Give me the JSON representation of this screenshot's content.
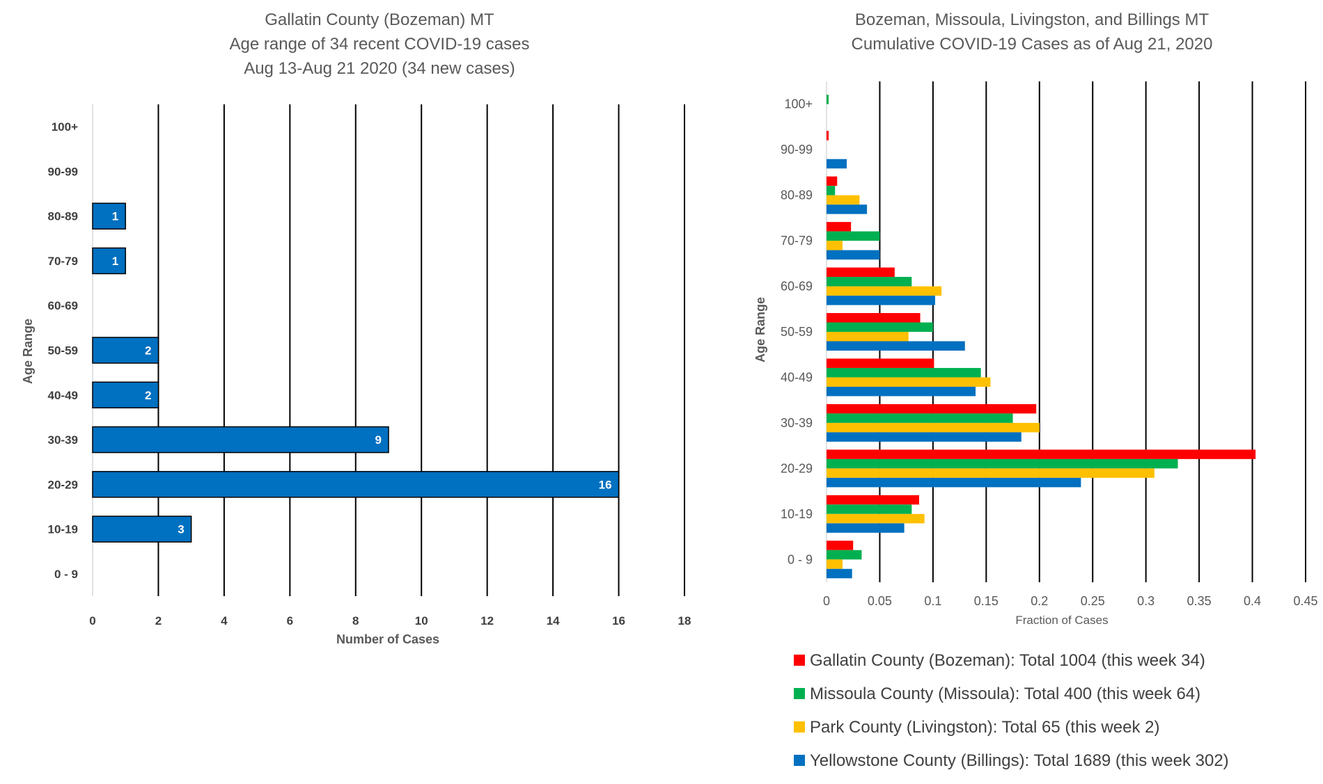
{
  "colors": {
    "bar_left": "#0070C0",
    "gallatin": "#FF0000",
    "missoula": "#00B050",
    "park": "#FFC000",
    "yellowstone": "#0070C0",
    "gridline": "#000000"
  },
  "chart_data": [
    {
      "type": "bar",
      "orientation": "horizontal",
      "title_lines": [
        "Gallatin County (Bozeman) MT",
        "Age range of 34 recent COVID-19 cases",
        "Aug 13-Aug 21 2020 (34 new cases)"
      ],
      "categories": [
        "0 - 9",
        "10-19",
        "20-29",
        "30-39",
        "40-49",
        "50-59",
        "60-69",
        "70-79",
        "80-89",
        "90-99",
        "100+"
      ],
      "values": [
        0,
        3,
        16,
        9,
        2,
        2,
        0,
        1,
        1,
        0,
        0
      ],
      "data_labels": [
        "",
        "3",
        "16",
        "9",
        "2",
        "2",
        "",
        "1",
        "1",
        "",
        ""
      ],
      "xlabel": "Number of Cases",
      "ylabel": "Age Range",
      "xlim": [
        0,
        18
      ],
      "xticks": [
        "0",
        "2",
        "4",
        "6",
        "8",
        "10",
        "12",
        "14",
        "16",
        "18"
      ],
      "grid": "vertical"
    },
    {
      "type": "bar",
      "orientation": "horizontal",
      "title_lines": [
        "Bozeman, Missoula, Livingston, and Billings MT",
        "Cumulative COVID-19 Cases as of Aug 21, 2020"
      ],
      "categories": [
        "0 - 9",
        "10-19",
        "20-29",
        "30-39",
        "40-49",
        "50-59",
        "60-69",
        "70-79",
        "80-89",
        "90-99",
        "100+"
      ],
      "series": [
        {
          "name": "Gallatin County (Bozeman): Total 1004 (this week 34)",
          "color_key": "gallatin",
          "values": [
            0.025,
            0.087,
            0.403,
            0.197,
            0.101,
            0.088,
            0.064,
            0.023,
            0.01,
            0.002,
            0
          ]
        },
        {
          "name": "Missoula County (Missoula): Total 400 (this week 64)",
          "color_key": "missoula",
          "values": [
            0.033,
            0.08,
            0.33,
            0.175,
            0.145,
            0.1,
            0.08,
            0.05,
            0.008,
            0,
            0.002
          ]
        },
        {
          "name": "Park County (Livingston): Total 65 (this week 2)",
          "color_key": "park",
          "values": [
            0.015,
            0.092,
            0.308,
            0.2,
            0.154,
            0.077,
            0.108,
            0.015,
            0.031,
            0,
            0
          ]
        },
        {
          "name": "Yellowstone County (Billings): Total 1689 (this week 302)",
          "color_key": "yellowstone",
          "values": [
            0.024,
            0.073,
            0.239,
            0.183,
            0.14,
            0.13,
            0.102,
            0.05,
            0.038,
            0.019,
            0
          ]
        }
      ],
      "xlabel": "Fraction of Cases",
      "ylabel": "Age Range",
      "xlim": [
        0,
        0.45
      ],
      "xticks": [
        "0",
        "0.05",
        "0.1",
        "0.15",
        "0.2",
        "0.25",
        "0.3",
        "0.35",
        "0.4",
        "0.45"
      ],
      "grid": "vertical",
      "legend_position": "bottom"
    }
  ]
}
